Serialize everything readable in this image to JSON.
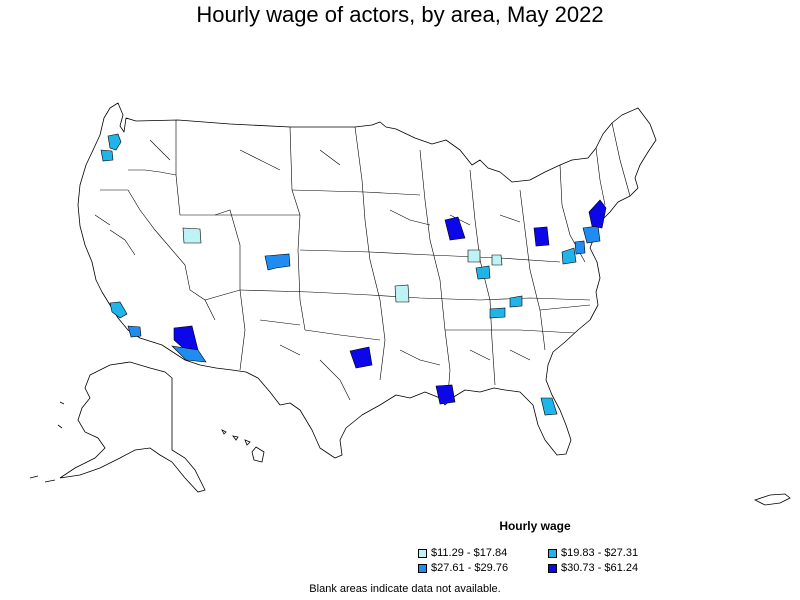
{
  "title": "Hourly wage of actors, by area, May 2022",
  "legend": {
    "title": "Hourly wage",
    "items": [
      {
        "label": "$11.29 - $17.84",
        "color": "#bdf3f5"
      },
      {
        "label": "$19.83 - $27.31",
        "color": "#1fb4ea"
      },
      {
        "label": "$27.61 - $29.76",
        "color": "#1e8cf0"
      },
      {
        "label": "$30.73 - $61.24",
        "color": "#0b07e8"
      }
    ]
  },
  "footnote": "Blank areas indicate data not available.",
  "colors": {
    "background": "#ffffff",
    "area_fill": "#ffffff",
    "area_stroke": "#000000"
  },
  "regions": [
    {
      "area": "Seattle-Tacoma, WA",
      "class": "$19.83 - $27.31"
    },
    {
      "area": "Portland, OR-WA",
      "class": "$19.83 - $27.31"
    },
    {
      "area": "Salt Lake City, UT",
      "class": "$11.29 - $17.84"
    },
    {
      "area": "Denver, CO",
      "class": "$27.61 - $29.76"
    },
    {
      "area": "Los Angeles, CA",
      "class": "$19.83 - $27.31"
    },
    {
      "area": "San Diego, CA",
      "class": "$27.61 - $29.76"
    },
    {
      "area": "Phoenix, AZ",
      "class": "$30.73 - $61.24"
    },
    {
      "area": "Tucson, AZ",
      "class": "$27.61 - $29.76"
    },
    {
      "area": "Dallas-Fort Worth, TX",
      "class": "$30.73 - $61.24"
    },
    {
      "area": "Kansas City, MO-KS",
      "class": "$11.29 - $17.84"
    },
    {
      "area": "Chicago, IL",
      "class": "$30.73 - $61.24"
    },
    {
      "area": "Indianapolis, IN",
      "class": "$11.29 - $17.84"
    },
    {
      "area": "Cincinnati, OH",
      "class": "$11.29 - $17.84"
    },
    {
      "area": "Louisville, KY",
      "class": "$19.83 - $27.31"
    },
    {
      "area": "Nashville, TN",
      "class": "$19.83 - $27.31"
    },
    {
      "area": "Knoxville, TN",
      "class": "$19.83 - $27.31"
    },
    {
      "area": "Pittsburgh, PA",
      "class": "$30.73 - $61.24"
    },
    {
      "area": "Washington, DC",
      "class": "$19.83 - $27.31"
    },
    {
      "area": "Baltimore, MD",
      "class": "$27.61 - $29.76"
    },
    {
      "area": "Philadelphia, PA",
      "class": "$27.61 - $29.76"
    },
    {
      "area": "New York, NY",
      "class": "$30.73 - $61.24"
    },
    {
      "area": "New Orleans, LA",
      "class": "$30.73 - $61.24"
    },
    {
      "area": "Orlando, FL",
      "class": "$19.83 - $27.31"
    }
  ]
}
